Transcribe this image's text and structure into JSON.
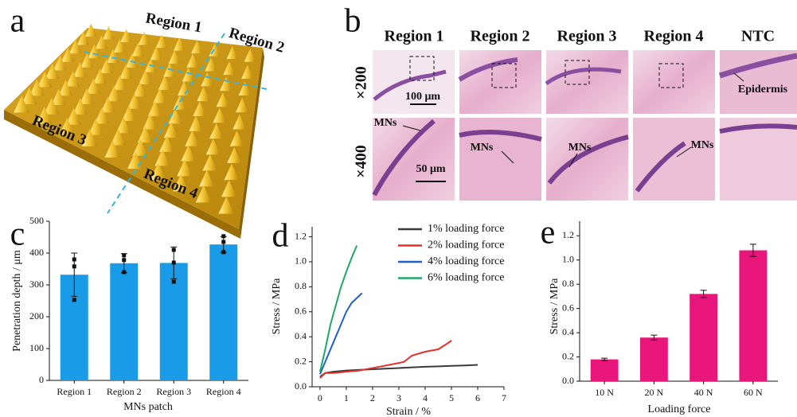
{
  "panel_a": {
    "label": "a",
    "regions": [
      "Region 1",
      "Region 2",
      "Region 3",
      "Region 4"
    ]
  },
  "panel_b": {
    "label": "b",
    "columns": [
      "Region 1",
      "Region 2",
      "Region 3",
      "Region 4",
      "NTC"
    ],
    "rows": [
      "×200",
      "×400"
    ],
    "scale_bars": [
      "100 μm",
      "50 μm"
    ],
    "epidermis": "Epidermis",
    "mns": [
      "MNs",
      "MNs",
      "MNs",
      "MNs"
    ]
  },
  "chart_data": [
    {
      "type": "bar",
      "label": "c",
      "xlabel": "MNs patch",
      "ylabel": "Penetration depth / μm",
      "categories": [
        "Region 1",
        "Region 2",
        "Region 3",
        "Region 4"
      ],
      "values": [
        332,
        368,
        369,
        427
      ],
      "errors": [
        68,
        30,
        50,
        25
      ],
      "points": [
        [
          380,
          358,
          253
        ],
        [
          393,
          378,
          340
        ],
        [
          410,
          370,
          310
        ],
        [
          453,
          435,
          403
        ]
      ],
      "color": "#1a9be8",
      "ylim": [
        0,
        500
      ],
      "yticks": [
        0,
        100,
        200,
        300,
        400,
        500
      ]
    },
    {
      "type": "line",
      "label": "d",
      "xlabel": "Strain / %",
      "ylabel": "Stress / MPa",
      "xlim": [
        -0.3,
        7
      ],
      "xticks": [
        0,
        1,
        2,
        3,
        4,
        5,
        6,
        7
      ],
      "ylim": [
        0,
        1.28
      ],
      "yticks": [
        {
          "value": 0,
          "label": "0.0"
        },
        0.2,
        0.4,
        0.6,
        0.8,
        {
          "value": 1,
          "label": "1.0"
        },
        1.2
      ],
      "legend": "upper right",
      "series": [
        {
          "name": "1% loading force",
          "color": "#3a3a3a",
          "x": [
            0,
            0.2,
            0.5,
            1,
            1.5,
            2,
            2.5,
            3,
            3.5,
            4,
            4.5,
            5,
            5.5,
            6
          ],
          "values": [
            0.08,
            0.11,
            0.12,
            0.13,
            0.135,
            0.14,
            0.145,
            0.15,
            0.155,
            0.16,
            0.163,
            0.167,
            0.17,
            0.175
          ]
        },
        {
          "name": "2% loading force",
          "color": "#e8302a",
          "x": [
            0,
            0.2,
            0.5,
            1,
            1.5,
            2,
            2.5,
            3,
            3.2,
            3.5,
            4,
            4.5,
            4.8,
            5
          ],
          "values": [
            0.07,
            0.11,
            0.11,
            0.12,
            0.13,
            0.15,
            0.17,
            0.19,
            0.2,
            0.25,
            0.28,
            0.3,
            0.34,
            0.37
          ]
        },
        {
          "name": "4% loading force",
          "color": "#1f5fd0",
          "x": [
            0,
            0.2,
            0.4,
            0.6,
            0.8,
            1.0,
            1.2,
            1.4,
            1.6
          ],
          "values": [
            0.1,
            0.2,
            0.3,
            0.4,
            0.5,
            0.6,
            0.67,
            0.71,
            0.75
          ]
        },
        {
          "name": "6% loading force",
          "color": "#21a868",
          "x": [
            0,
            0.2,
            0.4,
            0.6,
            0.8,
            1.0,
            1.2,
            1.4
          ],
          "values": [
            0.12,
            0.3,
            0.5,
            0.65,
            0.8,
            0.92,
            1.03,
            1.13
          ]
        }
      ]
    },
    {
      "type": "bar",
      "label": "e",
      "xlabel": "Loading force",
      "ylabel": "Stress / MPa",
      "categories": [
        "10 N",
        "20 N",
        "40 N",
        "60 N"
      ],
      "values": [
        0.18,
        0.36,
        0.72,
        1.08
      ],
      "errors": [
        0.01,
        0.02,
        0.03,
        0.05
      ],
      "color": "#e8157a",
      "ylim": [
        0,
        1.32
      ],
      "yticks": [
        {
          "value": 0,
          "label": "0.0"
        },
        0.2,
        0.4,
        0.6,
        0.8,
        {
          "value": 1,
          "label": "1.0"
        },
        1.2
      ]
    }
  ]
}
